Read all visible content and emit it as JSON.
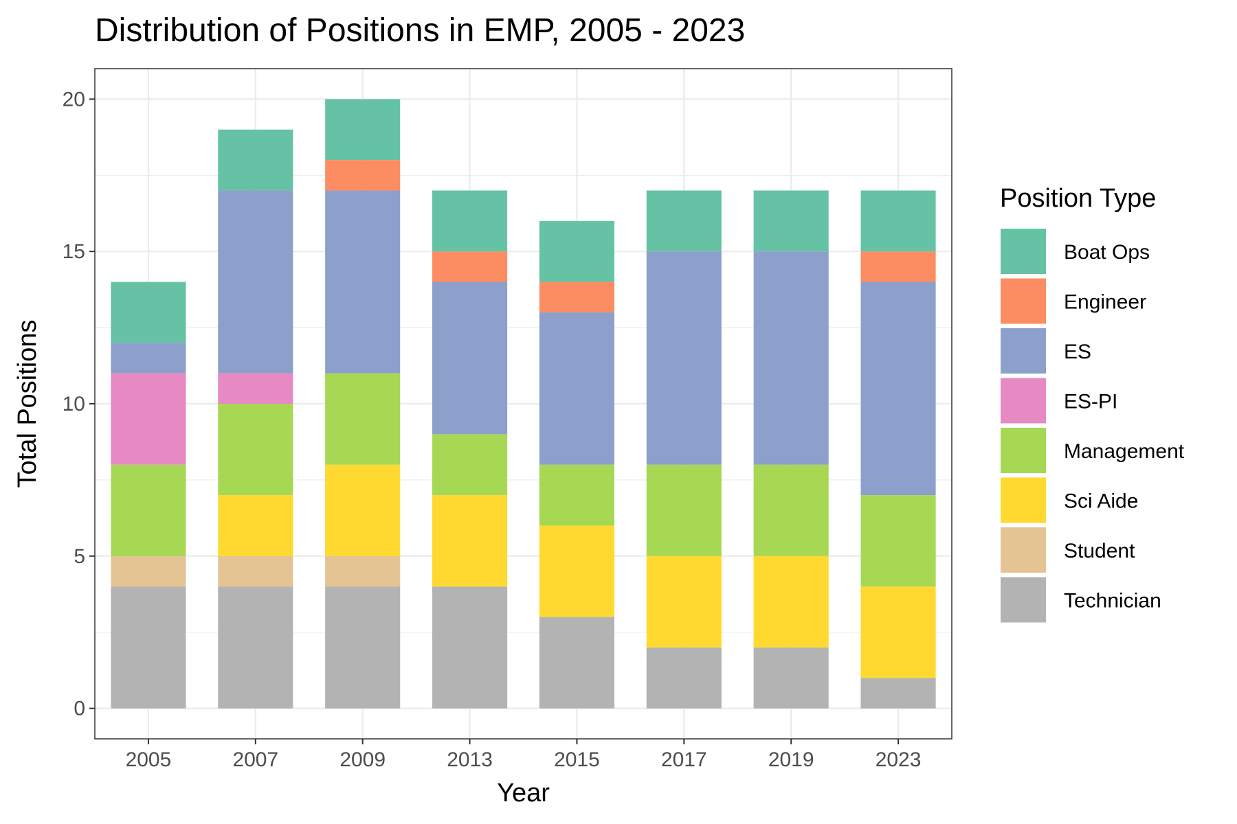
{
  "chart_data": {
    "type": "bar",
    "stacked": true,
    "title": "Distribution of Positions in EMP, 2005 - 2023",
    "xlabel": "Year",
    "ylabel": "Total Positions",
    "categories": [
      "2005",
      "2007",
      "2009",
      "2013",
      "2015",
      "2017",
      "2019",
      "2023"
    ],
    "ylim": [
      -1,
      21
    ],
    "yticks": [
      0,
      5,
      10,
      15,
      20
    ],
    "grid": true,
    "legend": {
      "title": "Position Type",
      "placement": "right"
    },
    "series": [
      {
        "name": "Technician",
        "color": "#B3B3B3",
        "values": [
          4,
          4,
          4,
          4,
          3,
          2,
          2,
          1
        ]
      },
      {
        "name": "Student",
        "color": "#E5C494",
        "values": [
          1,
          1,
          1,
          0,
          0,
          0,
          0,
          0
        ]
      },
      {
        "name": "Sci Aide",
        "color": "#FFD92F",
        "values": [
          0,
          2,
          3,
          3,
          3,
          3,
          3,
          3
        ]
      },
      {
        "name": "Management",
        "color": "#A6D854",
        "values": [
          3,
          3,
          3,
          2,
          2,
          3,
          3,
          3
        ]
      },
      {
        "name": "ES-PI",
        "color": "#E78AC3",
        "values": [
          3,
          1,
          0,
          0,
          0,
          0,
          0,
          0
        ]
      },
      {
        "name": "ES",
        "color": "#8DA0CB",
        "values": [
          1,
          6,
          6,
          5,
          5,
          7,
          7,
          7
        ]
      },
      {
        "name": "Engineer",
        "color": "#FC8D62",
        "values": [
          0,
          0,
          1,
          1,
          1,
          0,
          0,
          1
        ]
      },
      {
        "name": "Boat Ops",
        "color": "#66C2A5",
        "values": [
          2,
          2,
          2,
          2,
          2,
          2,
          2,
          2
        ]
      }
    ],
    "legend_order": [
      "Boat Ops",
      "Engineer",
      "ES",
      "ES-PI",
      "Management",
      "Sci Aide",
      "Student",
      "Technician"
    ]
  }
}
